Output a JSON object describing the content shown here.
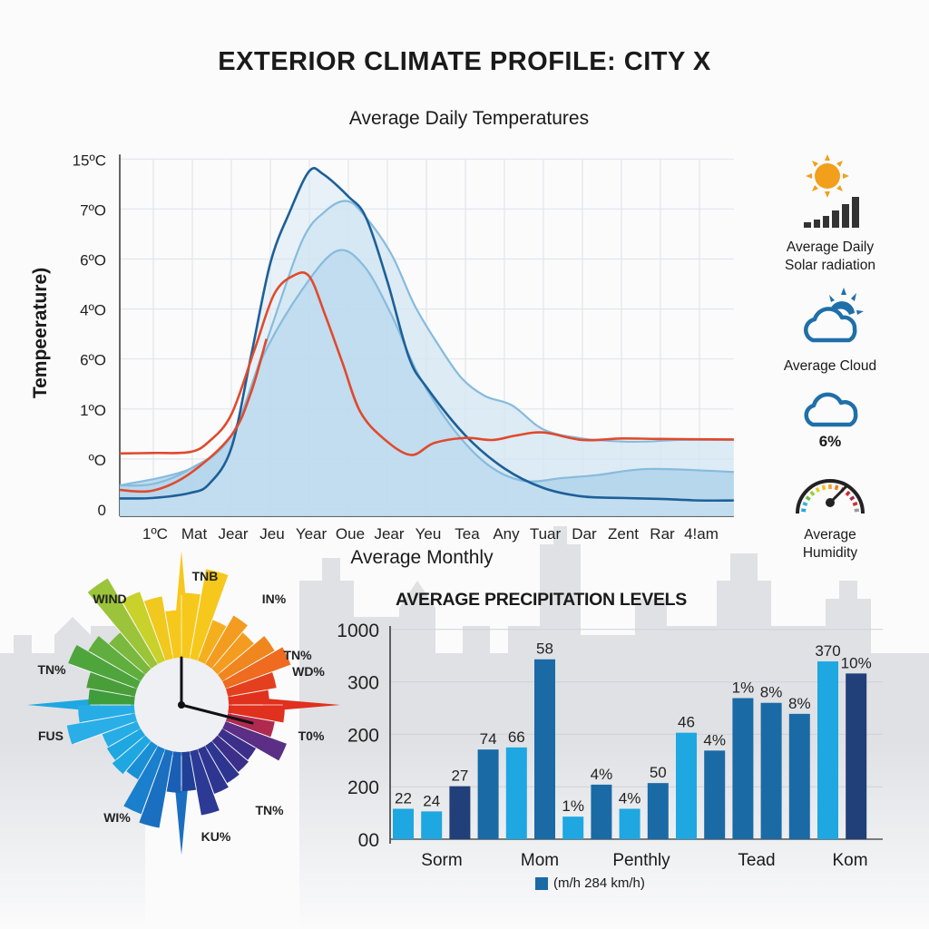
{
  "title": "EXTERIOR CLIMATE PROFILE: CITY X",
  "colors": {
    "dark_blue": "#1d5f98",
    "red": "#e04a2c",
    "light_blue": "#7fb6d9",
    "fill_light": "#cfe4f2",
    "fill_mid": "#a9d0e9",
    "bar_light": "#1ea7e1",
    "bar_mid": "#1a6aa6",
    "bar_dark": "#213f78"
  },
  "chart_data": [
    {
      "type": "line",
      "title": "Average Daily Temperatures",
      "xlabel": "Average Monthly",
      "ylabel": "Tempeerature)",
      "x_ticks": [
        "1ºC",
        "Mat",
        "Jear",
        "Jeu",
        "Year",
        "Oue",
        "Jear",
        "Yeu",
        "Tea",
        "Any",
        "Tuar",
        "Dar",
        "Zent",
        "Rar",
        "4!am"
      ],
      "y_ticks": [
        "0",
        "ºO",
        "1ºO",
        "6ºO",
        "4ºO",
        "6ºO",
        "7ºO",
        "15ºC"
      ],
      "grid": true,
      "series": [
        {
          "name": "light-blue-upper",
          "color": "#86bbdd",
          "fill": true,
          "points": [
            [
              -0.86,
              0.47
            ],
            [
              0,
              0.5
            ],
            [
              0.94,
              0.8
            ],
            [
              2,
              1.47
            ],
            [
              2.9,
              3.35
            ],
            [
              3.8,
              5.34
            ],
            [
              4.4,
              5.95
            ],
            [
              4.95,
              6.16
            ],
            [
              5.4,
              5.88
            ],
            [
              6.1,
              5.1
            ],
            [
              6.7,
              4.07
            ],
            [
              7.3,
              3.29
            ],
            [
              7.9,
              2.62
            ],
            [
              8.5,
              2.26
            ],
            [
              9.2,
              2.07
            ],
            [
              10,
              1.59
            ],
            [
              11,
              1.41
            ],
            [
              12,
              1.35
            ],
            [
              12.7,
              1.35
            ],
            [
              13.5,
              1.38
            ],
            [
              14.88,
              1.38
            ]
          ]
        },
        {
          "name": "light-blue-lower",
          "color": "#86bbdd",
          "fill": true,
          "points": [
            [
              -0.86,
              0.47
            ],
            [
              0.94,
              0.8
            ],
            [
              2,
              1.47
            ],
            [
              2.8,
              3.04
            ],
            [
              3.8,
              4.37
            ],
            [
              4.7,
              5.16
            ],
            [
              5.4,
              4.86
            ],
            [
              6.1,
              3.89
            ],
            [
              6.8,
              2.68
            ],
            [
              7.7,
              1.59
            ],
            [
              8.6,
              0.87
            ],
            [
              9.5,
              0.56
            ],
            [
              10.5,
              0.62
            ],
            [
              11.4,
              0.68
            ],
            [
              12.7,
              0.8
            ],
            [
              14.88,
              0.74
            ]
          ]
        },
        {
          "name": "dark-blue",
          "color": "#1d5f98",
          "fill": false,
          "points": [
            [
              -0.86,
              0.21
            ],
            [
              0,
              0.22
            ],
            [
              0.94,
              0.32
            ],
            [
              1.43,
              0.5
            ],
            [
              2,
              1.22
            ],
            [
              2.5,
              3.04
            ],
            [
              3,
              4.92
            ],
            [
              3.5,
              5.95
            ],
            [
              4,
              6.76
            ],
            [
              4.35,
              6.7
            ],
            [
              5,
              6.25
            ],
            [
              5.45,
              5.83
            ],
            [
              6,
              4.55
            ],
            [
              6.55,
              3.04
            ],
            [
              7,
              2.44
            ],
            [
              8,
              1.47
            ],
            [
              9,
              0.81
            ],
            [
              10,
              0.42
            ],
            [
              11,
              0.25
            ],
            [
              12,
              0.22
            ],
            [
              13,
              0.2
            ],
            [
              14,
              0.17
            ],
            [
              14.88,
              0.17
            ]
          ]
        },
        {
          "name": "red",
          "color": "#e04a2c",
          "fill": false,
          "points": [
            [
              -0.86,
              1.11
            ],
            [
              0,
              1.12
            ],
            [
              0.94,
              1.14
            ],
            [
              1.43,
              1.35
            ],
            [
              2,
              1.89
            ],
            [
              2.6,
              3.2
            ],
            [
              3.1,
              4.3
            ],
            [
              3.6,
              4.67
            ],
            [
              4.0,
              4.65
            ],
            [
              4.4,
              3.89
            ],
            [
              4.85,
              2.92
            ],
            [
              5.3,
              1.95
            ],
            [
              5.9,
              1.41
            ],
            [
              6.6,
              1.08
            ],
            [
              7.2,
              1.32
            ],
            [
              8,
              1.42
            ],
            [
              8.7,
              1.38
            ],
            [
              9.3,
              1.47
            ],
            [
              10,
              1.53
            ],
            [
              11,
              1.38
            ],
            [
              12,
              1.41
            ],
            [
              13,
              1.4
            ],
            [
              14.88,
              1.39
            ]
          ]
        },
        {
          "name": "red-lower",
          "color": "#e04a2c",
          "fill": false,
          "points": [
            [
              -0.86,
              0.38
            ],
            [
              0,
              0.37
            ],
            [
              0.94,
              0.71
            ],
            [
              2,
              1.47
            ],
            [
              2.5,
              2.32
            ],
            [
              2.9,
              3.4
            ]
          ]
        }
      ],
      "ylim": [
        0,
        7
      ],
      "xlim": [
        -0.86,
        14.88
      ]
    },
    {
      "type": "bar",
      "title": "AVERAGE PRECIPITATION LEVELS",
      "y_ticks": [
        "00",
        "200",
        "200",
        "300",
        "1000"
      ],
      "categories": [
        "Sorm",
        "Mom",
        "Penthly",
        "Tead",
        "Kom"
      ],
      "legend": "(m/h 284 km/h)",
      "bars": [
        {
          "label": "22",
          "value": 0.58,
          "shade": "light"
        },
        {
          "label": "24",
          "value": 0.53,
          "shade": "light"
        },
        {
          "label": "27",
          "value": 1.01,
          "shade": "dark"
        },
        {
          "label": "74",
          "value": 1.71,
          "shade": "mid"
        },
        {
          "label": "66",
          "value": 1.75,
          "shade": "light"
        },
        {
          "label": "58",
          "value": 3.43,
          "shade": "mid"
        },
        {
          "label": "1%",
          "value": 0.43,
          "shade": "light"
        },
        {
          "label": "4%",
          "value": 1.04,
          "shade": "mid"
        },
        {
          "label": "4%",
          "value": 0.58,
          "shade": "light"
        },
        {
          "label": "50",
          "value": 1.07,
          "shade": "mid"
        },
        {
          "label": "46",
          "value": 2.03,
          "shade": "light"
        },
        {
          "label": "4%",
          "value": 1.69,
          "shade": "mid"
        },
        {
          "label": "1%",
          "value": 2.69,
          "shade": "mid"
        },
        {
          "label": "8%",
          "value": 2.6,
          "shade": "mid"
        },
        {
          "label": "8%",
          "value": 2.39,
          "shade": "mid"
        },
        {
          "label": "370",
          "value": 3.39,
          "shade": "light"
        },
        {
          "label": "10%",
          "value": 3.16,
          "shade": "dark"
        }
      ],
      "ylim": [
        0,
        4
      ]
    }
  ],
  "wind_rose": {
    "labels": [
      "TNB",
      "WIND",
      "IN%",
      "TN%",
      "WD%",
      "TN%",
      "FUS",
      "T0%",
      "WI%",
      "TN%",
      "KU%"
    ],
    "petals": [
      1.3,
      1.6,
      1.05,
      1.2,
      1.1,
      1.25,
      1.35,
      1.12,
      1.02,
      1.2,
      1.1,
      1.3,
      1.0,
      1.02,
      1.05,
      1.1,
      1.3,
      1.0,
      1.02,
      1.45,
      1.35,
      1.0,
      1.05,
      1.0,
      0.98,
      1.35,
      1.2,
      1.08,
      1.12,
      1.4,
      1.25,
      1.1,
      1.7,
      1.4,
      1.28,
      1.1
    ],
    "petal_colors": [
      "#f6c81c",
      "#f6c81c",
      "#f4b01c",
      "#f39c1f",
      "#f39c1f",
      "#ef861e",
      "#ee6b1f",
      "#e4401f",
      "#e0301e",
      "#e0301e",
      "#b02a50",
      "#5a2f85",
      "#3b2f8a",
      "#3b2f8a",
      "#2e3590",
      "#2e3590",
      "#2c3a95",
      "#203f96",
      "#1a5fb5",
      "#1a6fc0",
      "#1a7fcc",
      "#1a8fd6",
      "#1ea7e1",
      "#1ea7e1",
      "#27ade6",
      "#2aaee8",
      "#27ade6",
      "#3f9d3b",
      "#4a9e3a",
      "#4ea53c",
      "#5fae3e",
      "#7ab83e",
      "#9bc43a",
      "#c9d12b",
      "#f0c81e",
      "#f6c81c"
    ]
  },
  "side_panel": {
    "solar_line1": "Average Daily",
    "solar_line2": "Solar radiation",
    "cloud_label": "Average Cloud",
    "cloud_value": "6%",
    "humidity_line1": "Average",
    "humidity_line2": "Humidity"
  }
}
